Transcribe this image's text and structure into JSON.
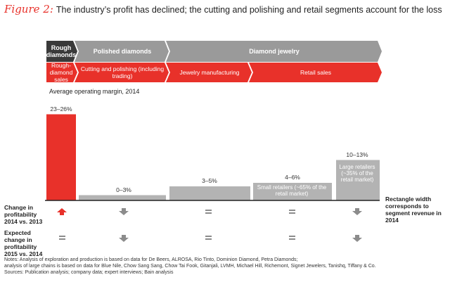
{
  "title": {
    "figure": "Figure 2:",
    "text": "The industry’s profit has declined; the cutting and polishing and retail segments account for the loss"
  },
  "headers": {
    "rough": "Rough diamonds",
    "polished": "Polished diamonds",
    "jewelry": "Diamond jewelry"
  },
  "subheaders": {
    "rough_sales": "Rough-diamond sales",
    "cutting": "Cutting and polishing (including trading)",
    "manufacturing": "Jewelry manufacturing",
    "retail": "Retail sales"
  },
  "colors": {
    "red": "#e8312a",
    "dark": "#3a3a3a",
    "gray": "#9a9a9a",
    "bar_gray": "#b3b3b3",
    "arrow_gray": "#8c8c8c"
  },
  "row_labels": {
    "change": "Change in profitability 2014 vs. 2013",
    "expected": "Expected change in profitability 2015 vs. 2014"
  },
  "chart_data": {
    "type": "bar",
    "title": "Average operating margin, 2014",
    "note_width": "Rectangle width corresponds to segment revenue in 2014",
    "segments": [
      {
        "name": "Rough-diamond sales",
        "label": "23–26%",
        "low": 23,
        "high": 26,
        "color": "red",
        "change": "up",
        "expected": "flat"
      },
      {
        "name": "Cutting and polishing",
        "label": "0–3%",
        "low": 0,
        "high": 3,
        "color": "gray",
        "change": "down",
        "expected": "down"
      },
      {
        "name": "Jewelry manufacturing",
        "label": "3–5%",
        "low": 3,
        "high": 5,
        "color": "gray",
        "change": "flat",
        "expected": "flat"
      },
      {
        "name": "Small retailers",
        "label": "4–6%",
        "low": 4,
        "high": 6,
        "color": "gray",
        "inner": "Small retailers (~65% of the retail market)",
        "change": "flat",
        "expected": "flat"
      },
      {
        "name": "Large retailers",
        "label": "10–13%",
        "low": 10,
        "high": 13,
        "color": "gray",
        "inner": "Large retailers (~35% of the retail market)",
        "change": "down",
        "expected": "down"
      }
    ],
    "ylim": [
      0,
      26
    ]
  },
  "notes": [
    "Notes: Analysis of exploration and production is based on data for De Beers, ALROSA, Rio Tinto, Dominion Diamond, Petra Diamonds;",
    "analysis of large chains is based on data for Blue Nile, Chow Sang Sang, Chow Tai Fook, Gitanjali, LVMH, Michael Hill, Richemont, Signet Jewelers, Tanishq, Tiffany & Co.",
    "Sources: Publication analysis; company data; expert interviews; Bain analysis"
  ]
}
